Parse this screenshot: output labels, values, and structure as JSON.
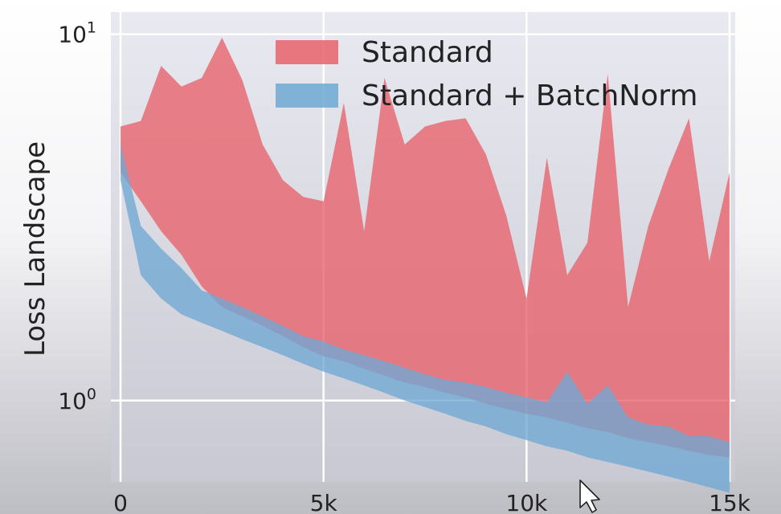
{
  "chart_data": {
    "type": "area",
    "xlabel": "",
    "ylabel": "Loss Landscape",
    "yscale": "log",
    "xlim": [
      0,
      15000
    ],
    "ylim": [
      0.6,
      11.5
    ],
    "grid": true,
    "legend_position": "top",
    "x_ticks": [
      {
        "value": 0,
        "label": "0"
      },
      {
        "value": 5000,
        "label": "5k"
      },
      {
        "value": 10000,
        "label": "10k"
      },
      {
        "value": 15000,
        "label": "15k"
      }
    ],
    "y_ticks": [
      {
        "value": 1,
        "base": "10",
        "exp": "0"
      },
      {
        "value": 10,
        "base": "10",
        "exp": "1"
      }
    ],
    "x": [
      0,
      500,
      1000,
      1500,
      2000,
      2500,
      3000,
      3500,
      4000,
      4500,
      5000,
      5500,
      6000,
      6500,
      7000,
      7500,
      8000,
      8500,
      9000,
      9500,
      10000,
      10500,
      11000,
      11500,
      12000,
      12500,
      13000,
      13500,
      14000,
      14500,
      15000
    ],
    "series": [
      {
        "name": "Standard",
        "color": "#e8616a",
        "upper": [
          5.6,
          5.8,
          8.2,
          7.2,
          7.6,
          9.8,
          7.5,
          5.0,
          4.0,
          3.6,
          3.5,
          6.5,
          2.9,
          7.6,
          5.0,
          5.6,
          5.8,
          5.9,
          4.7,
          3.2,
          1.9,
          4.6,
          2.2,
          2.7,
          7.8,
          1.8,
          3.0,
          4.3,
          5.9,
          2.4,
          4.2
        ],
        "lower": [
          4.2,
          3.5,
          2.9,
          2.5,
          2.05,
          1.8,
          1.7,
          1.6,
          1.5,
          1.4,
          1.32,
          1.28,
          1.22,
          1.17,
          1.12,
          1.09,
          1.05,
          1.02,
          0.98,
          0.95,
          0.92,
          0.9,
          0.87,
          0.84,
          0.82,
          0.79,
          0.77,
          0.75,
          0.73,
          0.71,
          0.7
        ]
      },
      {
        "name": "Standard + BatchNorm",
        "color": "#6fa8d4",
        "upper": [
          5.0,
          3.0,
          2.6,
          2.3,
          2.0,
          1.9,
          1.8,
          1.7,
          1.6,
          1.5,
          1.45,
          1.38,
          1.33,
          1.28,
          1.23,
          1.18,
          1.14,
          1.12,
          1.09,
          1.05,
          1.02,
          0.99,
          1.2,
          0.98,
          1.1,
          0.9,
          0.86,
          0.85,
          0.8,
          0.8,
          0.77
        ],
        "lower": [
          4.0,
          2.2,
          1.9,
          1.72,
          1.63,
          1.55,
          1.47,
          1.4,
          1.33,
          1.26,
          1.2,
          1.15,
          1.1,
          1.05,
          1.0,
          0.96,
          0.92,
          0.88,
          0.85,
          0.81,
          0.78,
          0.75,
          0.73,
          0.7,
          0.68,
          0.66,
          0.64,
          0.62,
          0.6,
          0.58,
          0.56
        ]
      }
    ]
  }
}
